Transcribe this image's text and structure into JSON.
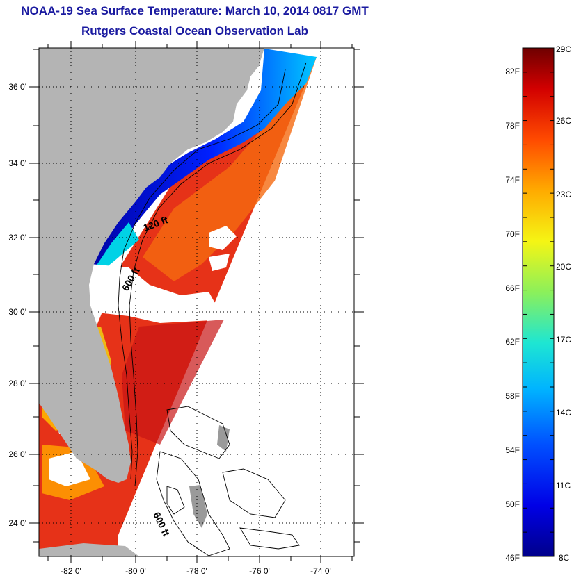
{
  "title": "NOAA-19 Sea Surface Temperature:  March 10, 2014 0817 GMT",
  "subtitle": "Rutgers Coastal Ocean Observation Lab",
  "map": {
    "lon_ticks": [
      "-82 0'",
      "-80 0'",
      "-78 0'",
      "-76 0'",
      "-74 0'"
    ],
    "lat_ticks": [
      "36 0'",
      "34 0'",
      "32 0'",
      "30 0'",
      "28 0'",
      "26 0'",
      "24 0'"
    ],
    "contours": [
      "120 ft",
      "600 ft",
      "600 ft"
    ],
    "colors": {
      "land": "#b4b4b4",
      "no_data": "#ffffff",
      "cold": "#0000b4",
      "warm": "#e82a10"
    }
  },
  "colorbar": {
    "fahrenheit": [
      "82F",
      "78F",
      "74F",
      "70F",
      "66F",
      "62F",
      "58F",
      "54F",
      "50F",
      "46F"
    ],
    "celsius": [
      "29C",
      "26C",
      "23C",
      "20C",
      "17C",
      "14C",
      "11C",
      "8C"
    ],
    "min_c": 8,
    "max_c": 29
  }
}
